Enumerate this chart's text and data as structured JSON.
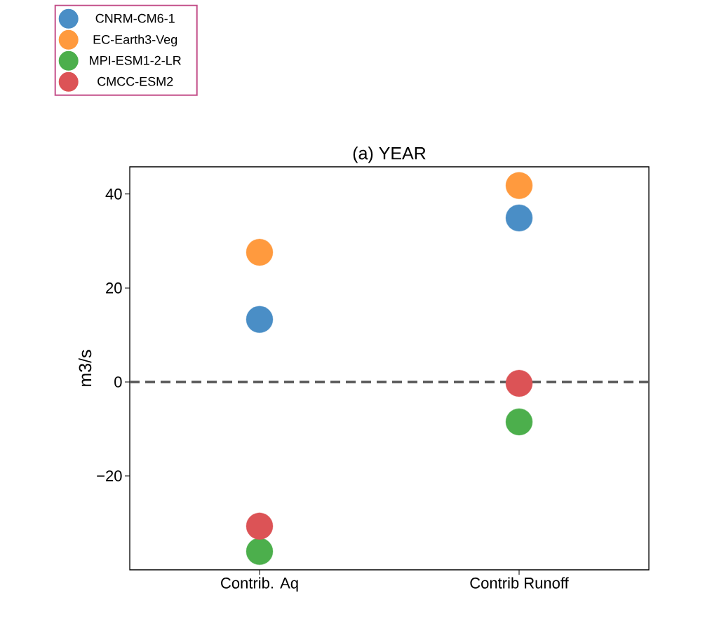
{
  "chart_data": {
    "type": "scatter",
    "title": "(a) YEAR",
    "ylabel": "m3/s",
    "categories": [
      "Contrib. Aq",
      "Contrib Runoff"
    ],
    "series": [
      {
        "name": "CNRM-CM6-1",
        "color": "#4a8ec6",
        "values": [
          13.3,
          34.9
        ]
      },
      {
        "name": "EC-Earth3-Veg",
        "color": "#ff9a3e",
        "values": [
          27.6,
          41.8
        ]
      },
      {
        "name": "MPI-ESM1-2-LR",
        "color": "#4caf4c",
        "values": [
          -36.1,
          -8.5
        ]
      },
      {
        "name": "CMCC-ESM2",
        "color": "#dc5356",
        "values": [
          -30.7,
          -0.3
        ]
      }
    ],
    "ylim": [
      -40,
      45.8
    ],
    "yticks": [
      {
        "value": -20,
        "label": "−20"
      },
      0,
      20,
      40
    ],
    "ref_lines": [
      {
        "axis": "y",
        "value": 0,
        "color": "#555555",
        "line_style": "dashed"
      }
    ],
    "legend": "top left",
    "marker": "circle",
    "grid": false
  }
}
